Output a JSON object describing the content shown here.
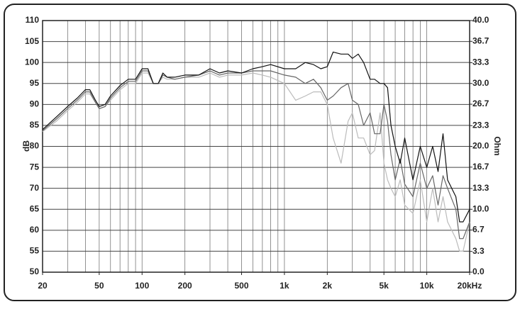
{
  "chart_data": {
    "type": "line",
    "y_label": "dB",
    "y2_label": "Ohm",
    "log_x": true,
    "grid": true,
    "xlim": [
      20,
      20000
    ],
    "xticks": [
      20,
      50,
      100,
      200,
      500,
      {
        "value": 1000,
        "label": "1k"
      },
      {
        "value": 2000,
        "label": "2k"
      },
      {
        "value": 5000,
        "label": "5k"
      },
      {
        "value": 10000,
        "label": "10k"
      },
      {
        "value": 20000,
        "label": "20kHz"
      }
    ],
    "xgrid": [
      20,
      30,
      40,
      50,
      60,
      70,
      80,
      90,
      100,
      200,
      300,
      400,
      500,
      600,
      700,
      800,
      900,
      1000,
      2000,
      3000,
      4000,
      5000,
      6000,
      7000,
      8000,
      9000,
      10000,
      20000
    ],
    "ylim": [
      50,
      110
    ],
    "yticks": [
      50,
      55,
      60,
      65,
      70,
      75,
      80,
      85,
      90,
      95,
      100,
      105,
      110
    ],
    "y2lim": [
      0,
      40
    ],
    "y2ticks": [
      {
        "value": 0,
        "label": "0.0"
      },
      3.3,
      6.7,
      {
        "value": 10,
        "label": "10.0"
      },
      13.3,
      16.7,
      {
        "value": 20,
        "label": "20.0"
      },
      23.3,
      26.7,
      {
        "value": 30,
        "label": "30.0"
      },
      33.3,
      36.7,
      {
        "value": 40,
        "label": "40.0"
      }
    ],
    "x": [
      20,
      25,
      30,
      35,
      40,
      43,
      47,
      50,
      55,
      60,
      70,
      80,
      90,
      100,
      110,
      120,
      130,
      140,
      150,
      170,
      200,
      250,
      300,
      350,
      400,
      500,
      600,
      700,
      800,
      1000,
      1200,
      1400,
      1600,
      1800,
      2000,
      2200,
      2500,
      2800,
      3000,
      3300,
      3600,
      4000,
      4300,
      4700,
      5000,
      5300,
      5600,
      6000,
      6500,
      7000,
      8000,
      9000,
      10000,
      11000,
      12000,
      13000,
      14000,
      16000,
      17000,
      18000,
      20000
    ],
    "series": [
      {
        "color": "#bbbbbb",
        "values": [
          83.5,
          86,
          88.5,
          90.5,
          92.5,
          92.5,
          90.5,
          89,
          89.5,
          91,
          93.5,
          95,
          95,
          97.5,
          97.5,
          95,
          95,
          96.5,
          96,
          96,
          96.5,
          96.5,
          97.5,
          96.5,
          97,
          97,
          97.5,
          97,
          96.5,
          95,
          91,
          92,
          93,
          93,
          90,
          82,
          76,
          86,
          88,
          82,
          82,
          78,
          79,
          88,
          76,
          72,
          70,
          68,
          72,
          66,
          64,
          72,
          62,
          70,
          62,
          68,
          62,
          58,
          55,
          55,
          62
        ]
      },
      {
        "color": "#666666",
        "values": [
          83.7,
          86.5,
          89,
          91,
          93,
          93,
          90.5,
          89,
          89.5,
          91.5,
          94,
          95.5,
          95.5,
          98,
          98,
          95,
          95,
          97,
          96.5,
          96,
          96.5,
          97,
          98,
          97,
          97.5,
          97.5,
          98,
          98,
          98,
          97,
          96.5,
          95,
          96,
          94,
          91,
          92,
          94,
          95,
          91,
          90,
          85,
          88,
          83,
          83,
          90,
          86,
          78,
          72,
          77,
          71,
          68,
          76,
          70,
          73,
          66,
          73,
          70,
          65,
          58,
          58,
          62
        ]
      },
      {
        "color": "#111111",
        "values": [
          84,
          87,
          89.5,
          91.5,
          93.5,
          93.5,
          91,
          89.5,
          90,
          92,
          94.5,
          96,
          96,
          98.5,
          98.5,
          95,
          95,
          97.5,
          96.5,
          96.5,
          97,
          97,
          98.5,
          97.5,
          98,
          97.5,
          98.5,
          99,
          99.5,
          98.5,
          98.5,
          100,
          99.5,
          98.5,
          99,
          102.5,
          102,
          102,
          101,
          102,
          100,
          96,
          96,
          95,
          95,
          94,
          85,
          80,
          76,
          82,
          72,
          80,
          75,
          80,
          74,
          83,
          72,
          68,
          62,
          62,
          65
        ]
      }
    ]
  }
}
